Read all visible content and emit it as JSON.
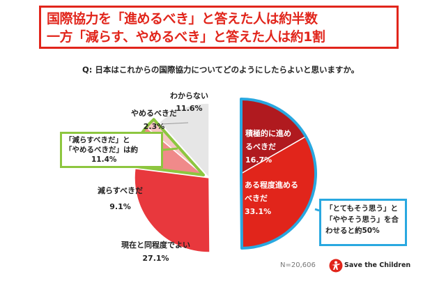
{
  "title": {
    "line1": "国際協力を「進めるべき」と答えた人は約半数",
    "line2": "一方「減らす、やめるべき」と答えた人は約1割"
  },
  "question": "Q: 日本はこれからの国際協力についてどのようにしたらよいと思いますか。",
  "callouts": {
    "left_line1": "「減らすべきだ」と",
    "left_line2": "「やめるべきだ」は約",
    "left_line3": "11.4%",
    "right_line1": "「とてもそう思う」と",
    "right_line2": "「ややそう思う」を合",
    "right_line3": "わせると約50%"
  },
  "sample_size": "N=20,606",
  "logo_text": "Save the Children",
  "colors": {
    "dark_red": "#b01a1f",
    "red": "#e1251b",
    "mid_red": "#e8383d",
    "pink": "#f08a8a",
    "light_pink": "#f7c6c4",
    "light_gray": "#e6e6e6",
    "highlight_blue": "#29a8e0",
    "highlight_green": "#8dc63f"
  },
  "chart_data": {
    "type": "pie",
    "slices": [
      {
        "label": "積極的に進めるべきだ",
        "value": 16.7,
        "display": "16.7%",
        "color": "#b01a1f"
      },
      {
        "label": "ある程度進めるべきだ",
        "value": 33.1,
        "display": "33.1%",
        "color": "#e1251b"
      },
      {
        "label": "現在と同程度でよい",
        "value": 27.1,
        "display": "27.1%",
        "color": "#e8383d"
      },
      {
        "label": "減らすべきだ",
        "value": 9.1,
        "display": "9.1%",
        "color": "#f08a8a"
      },
      {
        "label": "やめるべきだ",
        "value": 2.3,
        "display": "2.3%",
        "color": "#f7c6c4"
      },
      {
        "label": "わからない",
        "value": 11.6,
        "display": "11.6%",
        "color": "#e6e6e6"
      }
    ],
    "start_angle": "12 o'clock",
    "direction": "clockwise"
  }
}
